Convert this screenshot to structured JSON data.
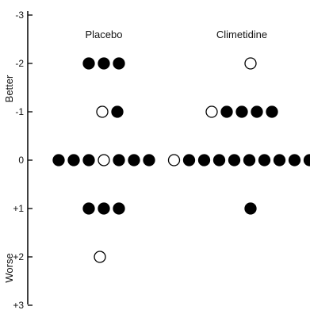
{
  "chart_data": {
    "type": "scatter",
    "ylim": [
      -3,
      3
    ],
    "y_inverted": true,
    "y_tick_labels": [
      {
        "value": -3,
        "label": "-3"
      },
      {
        "value": -2,
        "label": "-2"
      },
      {
        "value": -1,
        "label": "-1"
      },
      {
        "value": 0,
        "label": "0"
      },
      {
        "value": 1,
        "label": "+1"
      },
      {
        "value": 2,
        "label": "+2"
      },
      {
        "value": 3,
        "label": "+3"
      }
    ],
    "axis_annotations": {
      "top": "Better",
      "bottom": "Worse"
    },
    "groups": [
      {
        "name": "Placebo",
        "points": [
          {
            "y": -2,
            "filled": 3,
            "open": 0
          },
          {
            "y": -1,
            "filled": 1,
            "open": 1
          },
          {
            "y": 0,
            "filled": 6,
            "open": 1
          },
          {
            "y": 1,
            "filled": 3,
            "open": 0
          },
          {
            "y": 2,
            "filled": 0,
            "open": 1
          }
        ]
      },
      {
        "name": "Climetidine",
        "points": [
          {
            "y": -2,
            "filled": 0,
            "open": 1
          },
          {
            "y": -1,
            "filled": 4,
            "open": 1
          },
          {
            "y": 0,
            "filled": 9,
            "open": 1
          },
          {
            "y": 1,
            "filled": 1,
            "open": 0
          }
        ]
      }
    ],
    "grid": false,
    "legend": "none"
  }
}
